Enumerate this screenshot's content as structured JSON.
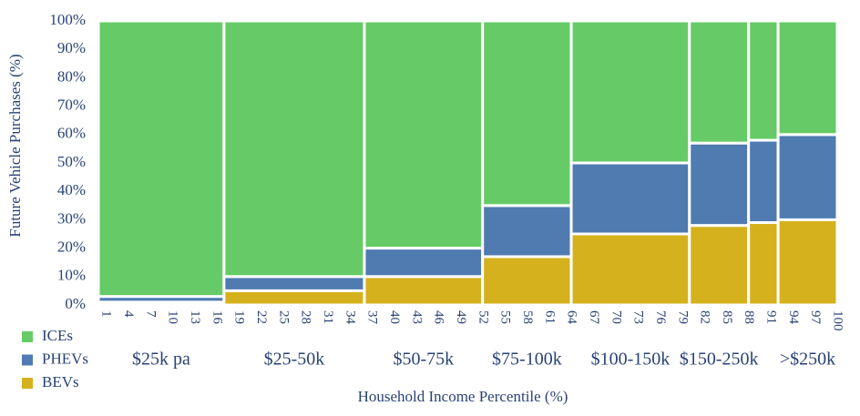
{
  "chart_data": {
    "type": "marimekko",
    "x_label": "Household Income Percentile (%)",
    "y_label": "Future Vehicle Purchases (%)",
    "x_edges": [
      0,
      17,
      36,
      52,
      64,
      80,
      88,
      92,
      100
    ],
    "categories": [
      "$25k pa",
      "$25-50k",
      "$50-75k",
      "$75-100k",
      "$100-150k",
      "$150-250k",
      null,
      ">$250k"
    ],
    "series": [
      {
        "name": "ICEs",
        "color": "#66cb66",
        "values": [
          97,
          90,
          80,
          65,
          50,
          43,
          42,
          40
        ]
      },
      {
        "name": "PHEVs",
        "color": "#4f7bb1",
        "values": [
          2,
          5,
          10,
          18,
          25,
          29,
          29,
          30
        ]
      },
      {
        "name": "BEVs",
        "color": "#d5b11d",
        "values": [
          1,
          5,
          10,
          17,
          25,
          28,
          29,
          30
        ]
      }
    ],
    "xlim": [
      0,
      100
    ],
    "xticks": [
      1,
      4,
      7,
      10,
      13,
      16,
      19,
      22,
      25,
      28,
      31,
      34,
      37,
      40,
      43,
      46,
      49,
      52,
      55,
      58,
      61,
      64,
      67,
      70,
      73,
      76,
      79,
      82,
      85,
      88,
      91,
      94,
      97,
      100
    ],
    "ylim": [
      0,
      100
    ],
    "yticks": [
      {
        "value": 0,
        "label": "0%"
      },
      {
        "value": 10,
        "label": "10%"
      },
      {
        "value": 20,
        "label": "20%"
      },
      {
        "value": 30,
        "label": "30%"
      },
      {
        "value": 40,
        "label": "40%"
      },
      {
        "value": 50,
        "label": "50%"
      },
      {
        "value": 60,
        "label": "60%"
      },
      {
        "value": 70,
        "label": "70%"
      },
      {
        "value": 80,
        "label": "80%"
      },
      {
        "value": 90,
        "label": "90%"
      },
      {
        "value": 100,
        "label": "100%"
      }
    ],
    "legend": "bottom-left"
  }
}
